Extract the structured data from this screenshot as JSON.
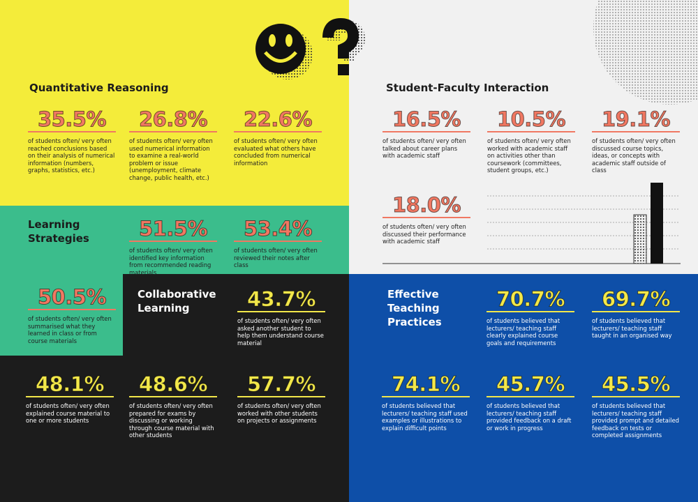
{
  "sections": [
    {
      "title": "Quantitative Reasoning",
      "stats": [
        {
          "value": "35.5%",
          "text": "of students often/ very often reached conclusions based on their analysis of numerical information (numbers, graphs, statistics, etc.)"
        },
        {
          "value": "26.8%",
          "text": "of students often/ very often used numerical information to examine a real-world problem or issue (unemployment, climate change, public health, etc.)"
        },
        {
          "value": "22.6%",
          "text": "of students often/ very often evaluated what others have concluded from numerical information"
        }
      ]
    },
    {
      "title": "Learning Strategies",
      "stats": [
        {
          "value": "51.5%",
          "text": "of students often/ very often identified key information from recommended reading materials"
        },
        {
          "value": "53.4%",
          "text": "of students often/ very often reviewed their notes after class"
        },
        {
          "value": "50.5%",
          "text": "of students often/ very often summarised what they learned in class or from course materials"
        }
      ]
    },
    {
      "title": "Collaborative Learning",
      "stats": [
        {
          "value": "43.7%",
          "text": "of students often/ very often asked another student to help them understand course material"
        },
        {
          "value": "48.1%",
          "text": "of students often/ very often explained course material to one or more students"
        },
        {
          "value": "48.6%",
          "text": "of students often/ very often prepared for exams by discussing or working through course material with other students"
        },
        {
          "value": "57.7%",
          "text": "of students often/ very often worked with other students on projects or assignments"
        }
      ]
    },
    {
      "title": "Student-Faculty Interaction",
      "stats": [
        {
          "value": "16.5%",
          "text": "of students often/ very often talked about career plans with academic staff"
        },
        {
          "value": "10.5%",
          "text": "of students often/ very often worked with academic staff on activities other than coursework (committees, student groups, etc.)"
        },
        {
          "value": "19.1%",
          "text": "of students often/ very often discussed course topics, ideas, or concepts with academic staff outside of class"
        },
        {
          "value": "18.0%",
          "text": "of students often/ very often discussed their performance with academic staff"
        }
      ]
    },
    {
      "title": "Effective Teaching Practices",
      "stats": [
        {
          "value": "70.7%",
          "text": "of students believed that lecturers/ teaching staff clearly explained course goals and requirements"
        },
        {
          "value": "69.7%",
          "text": "of students believed that lecturers/ teaching staff taught in an organised way"
        },
        {
          "value": "74.1%",
          "text": "of students believed that lecturers/ teaching staff used examples or illustrations to explain difficult points"
        },
        {
          "value": "45.7%",
          "text": "of students believed that lecturers/ teaching staff provided feedback on a draft or work in progress"
        },
        {
          "value": "45.5%",
          "text": "of students believed that lecturers/ teaching staff provided prompt and detailed feedback on tests or completed assignments"
        }
      ]
    }
  ]
}
